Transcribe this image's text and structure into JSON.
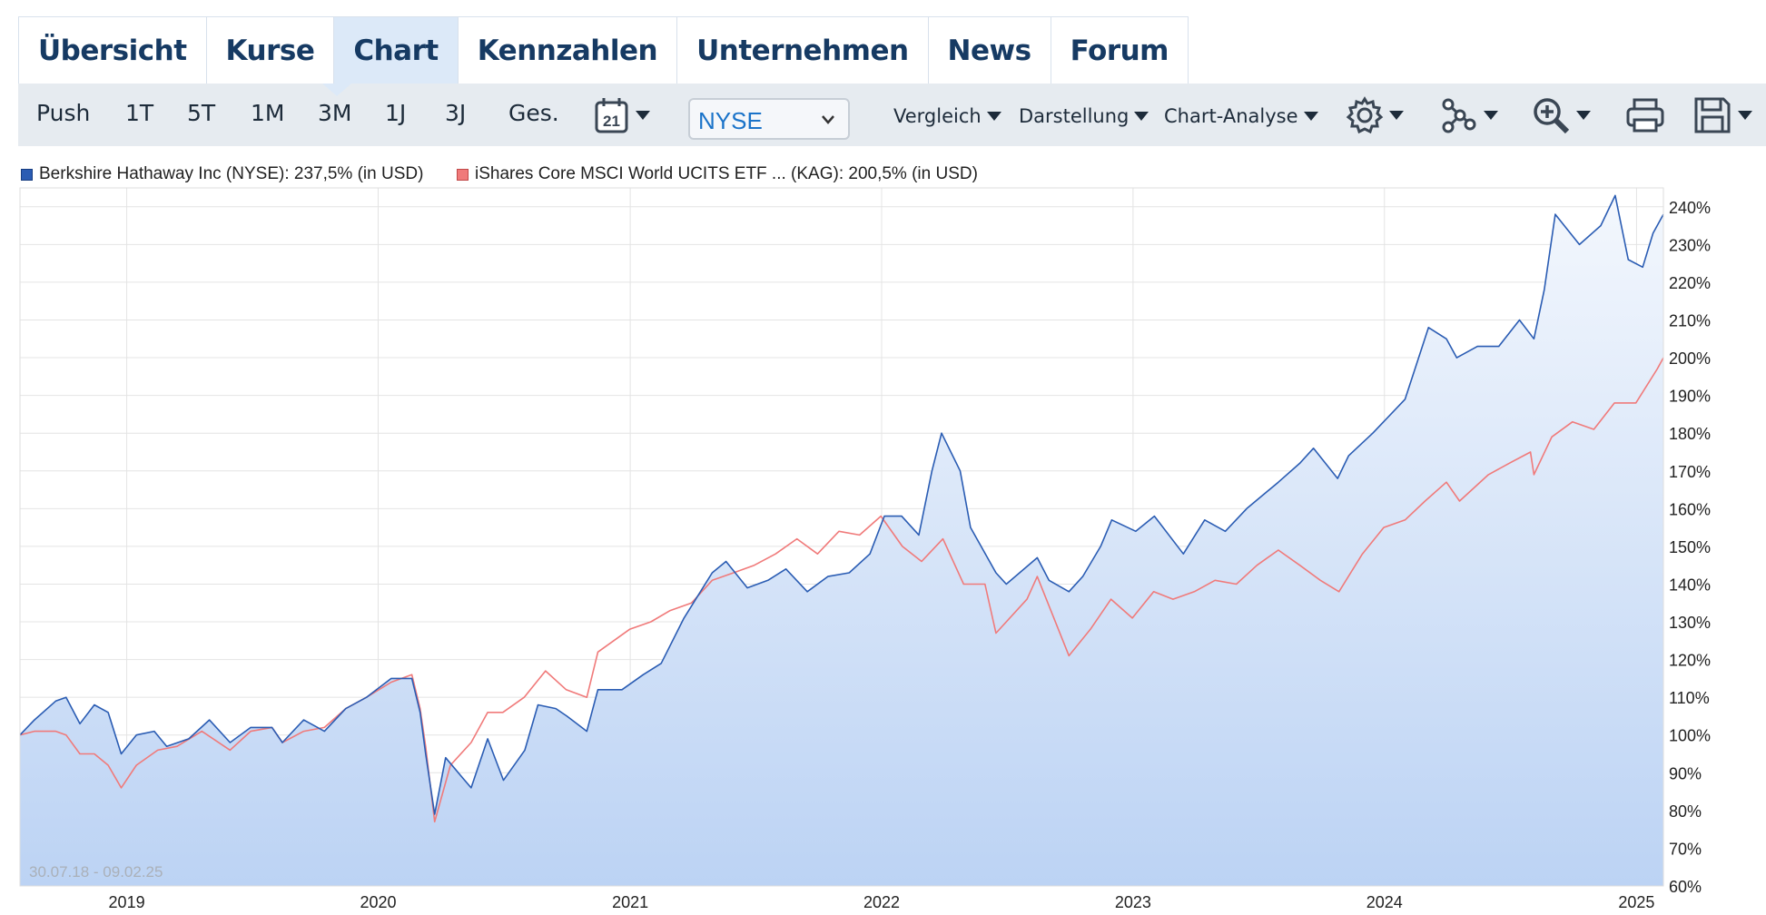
{
  "tabs": [
    {
      "label": "Übersicht"
    },
    {
      "label": "Kurse"
    },
    {
      "label": "Chart",
      "active": true
    },
    {
      "label": "Kennzahlen"
    },
    {
      "label": "Unternehmen"
    },
    {
      "label": "News"
    },
    {
      "label": "Forum"
    }
  ],
  "toolbar": {
    "ranges": [
      "Push",
      "1T",
      "5T",
      "1M",
      "3M",
      "1J",
      "3J",
      "Ges."
    ],
    "calendar_icon": "calendar-icon",
    "calendar_day": "21",
    "exchange": "NYSE",
    "menus": [
      "Vergleich",
      "Darstellung",
      "Chart-Analyse"
    ],
    "icons": [
      "gear-icon",
      "network-icon",
      "zoom-in-icon",
      "print-icon",
      "save-icon"
    ]
  },
  "colors": {
    "series1": "#2a5cb3",
    "series2": "#f07a7a",
    "area_top": "#f3f7fd",
    "area_bottom": "#bcd3f4",
    "grid": "#e4e4e4"
  },
  "chart_data": {
    "type": "line",
    "date_range_label": "30.07.18 - 09.02.25",
    "y_unit": "%",
    "ylim": [
      60,
      245
    ],
    "y_ticks": [
      60,
      70,
      80,
      90,
      100,
      110,
      120,
      130,
      140,
      150,
      160,
      170,
      180,
      190,
      200,
      210,
      220,
      230,
      240
    ],
    "x_range": [
      "2018-07-30",
      "2025-02-09"
    ],
    "x_ticks": [
      {
        "label": "2019",
        "date": "2019-01-01"
      },
      {
        "label": "2020",
        "date": "2020-01-01"
      },
      {
        "label": "2021",
        "date": "2021-01-01"
      },
      {
        "label": "2022",
        "date": "2022-01-01"
      },
      {
        "label": "2023",
        "date": "2023-01-01"
      },
      {
        "label": "2024",
        "date": "2024-01-01"
      },
      {
        "label": "2025",
        "date": "2025-01-01"
      }
    ],
    "grid": true,
    "legend_position": "top-left",
    "series": [
      {
        "name": "Berkshire Hathaway Inc (NYSE): 237,5% (in USD)",
        "area": true,
        "points": [
          [
            "2018-07-30",
            100
          ],
          [
            "2018-08-20",
            104
          ],
          [
            "2018-09-20",
            109
          ],
          [
            "2018-10-05",
            110
          ],
          [
            "2018-10-25",
            103
          ],
          [
            "2018-11-15",
            108
          ],
          [
            "2018-12-05",
            106
          ],
          [
            "2018-12-24",
            95
          ],
          [
            "2019-01-15",
            100
          ],
          [
            "2019-02-10",
            101
          ],
          [
            "2019-02-28",
            97
          ],
          [
            "2019-04-01",
            99
          ],
          [
            "2019-05-01",
            104
          ],
          [
            "2019-05-31",
            98
          ],
          [
            "2019-06-30",
            102
          ],
          [
            "2019-07-31",
            102
          ],
          [
            "2019-08-15",
            98
          ],
          [
            "2019-09-15",
            104
          ],
          [
            "2019-10-15",
            101
          ],
          [
            "2019-11-15",
            107
          ],
          [
            "2019-12-15",
            110
          ],
          [
            "2020-01-20",
            115
          ],
          [
            "2020-02-19",
            115
          ],
          [
            "2020-03-02",
            106
          ],
          [
            "2020-03-10",
            95
          ],
          [
            "2020-03-23",
            79
          ],
          [
            "2020-04-08",
            94
          ],
          [
            "2020-05-01",
            89
          ],
          [
            "2020-05-15",
            86
          ],
          [
            "2020-06-08",
            99
          ],
          [
            "2020-07-01",
            88
          ],
          [
            "2020-08-01",
            96
          ],
          [
            "2020-08-20",
            108
          ],
          [
            "2020-09-15",
            107
          ],
          [
            "2020-10-01",
            105
          ],
          [
            "2020-10-30",
            101
          ],
          [
            "2020-11-15",
            112
          ],
          [
            "2020-12-20",
            112
          ],
          [
            "2021-01-20",
            116
          ],
          [
            "2021-02-15",
            119
          ],
          [
            "2021-03-20",
            131
          ],
          [
            "2021-04-30",
            143
          ],
          [
            "2021-05-20",
            146
          ],
          [
            "2021-06-20",
            139
          ],
          [
            "2021-07-20",
            141
          ],
          [
            "2021-08-15",
            144
          ],
          [
            "2021-09-15",
            138
          ],
          [
            "2021-10-15",
            142
          ],
          [
            "2021-11-15",
            143
          ],
          [
            "2021-12-15",
            148
          ],
          [
            "2022-01-05",
            158
          ],
          [
            "2022-01-30",
            158
          ],
          [
            "2022-02-24",
            153
          ],
          [
            "2022-03-15",
            170
          ],
          [
            "2022-03-29",
            180
          ],
          [
            "2022-04-25",
            170
          ],
          [
            "2022-05-10",
            155
          ],
          [
            "2022-06-16",
            143
          ],
          [
            "2022-07-01",
            140
          ],
          [
            "2022-08-15",
            147
          ],
          [
            "2022-09-01",
            141
          ],
          [
            "2022-09-30",
            138
          ],
          [
            "2022-10-20",
            142
          ],
          [
            "2022-11-15",
            150
          ],
          [
            "2022-12-01",
            157
          ],
          [
            "2023-01-05",
            154
          ],
          [
            "2023-02-01",
            158
          ],
          [
            "2023-03-15",
            148
          ],
          [
            "2023-04-15",
            157
          ],
          [
            "2023-05-15",
            154
          ],
          [
            "2023-06-15",
            160
          ],
          [
            "2023-07-31",
            167
          ],
          [
            "2023-08-31",
            172
          ],
          [
            "2023-09-20",
            176
          ],
          [
            "2023-10-25",
            168
          ],
          [
            "2023-11-10",
            174
          ],
          [
            "2023-12-15",
            180
          ],
          [
            "2024-01-31",
            189
          ],
          [
            "2024-03-05",
            208
          ],
          [
            "2024-03-31",
            205
          ],
          [
            "2024-04-15",
            200
          ],
          [
            "2024-05-15",
            203
          ],
          [
            "2024-06-15",
            203
          ],
          [
            "2024-07-15",
            210
          ],
          [
            "2024-08-05",
            205
          ],
          [
            "2024-08-20",
            218
          ],
          [
            "2024-09-05",
            238
          ],
          [
            "2024-10-10",
            230
          ],
          [
            "2024-11-10",
            235
          ],
          [
            "2024-12-01",
            243
          ],
          [
            "2024-12-20",
            226
          ],
          [
            "2025-01-10",
            224
          ],
          [
            "2025-01-25",
            233
          ],
          [
            "2025-02-09",
            238
          ]
        ]
      },
      {
        "name": "iShares Core MSCI World UCITS ETF ... (KAG): 200,5% (in USD)",
        "area": false,
        "points": [
          [
            "2018-07-30",
            100
          ],
          [
            "2018-08-20",
            101
          ],
          [
            "2018-09-20",
            101
          ],
          [
            "2018-10-05",
            100
          ],
          [
            "2018-10-25",
            95
          ],
          [
            "2018-11-15",
            95
          ],
          [
            "2018-12-05",
            92
          ],
          [
            "2018-12-24",
            86
          ],
          [
            "2019-01-15",
            92
          ],
          [
            "2019-02-15",
            96
          ],
          [
            "2019-03-15",
            97
          ],
          [
            "2019-04-20",
            101
          ],
          [
            "2019-05-31",
            96
          ],
          [
            "2019-06-30",
            101
          ],
          [
            "2019-07-31",
            102
          ],
          [
            "2019-08-15",
            98
          ],
          [
            "2019-09-15",
            101
          ],
          [
            "2019-10-15",
            102
          ],
          [
            "2019-11-15",
            107
          ],
          [
            "2019-12-15",
            110
          ],
          [
            "2020-01-20",
            114
          ],
          [
            "2020-02-19",
            116
          ],
          [
            "2020-03-02",
            107
          ],
          [
            "2020-03-10",
            97
          ],
          [
            "2020-03-23",
            77
          ],
          [
            "2020-04-15",
            92
          ],
          [
            "2020-05-15",
            98
          ],
          [
            "2020-06-08",
            106
          ],
          [
            "2020-06-30",
            106
          ],
          [
            "2020-07-31",
            110
          ],
          [
            "2020-08-31",
            117
          ],
          [
            "2020-09-30",
            112
          ],
          [
            "2020-10-30",
            110
          ],
          [
            "2020-11-15",
            122
          ],
          [
            "2020-12-31",
            128
          ],
          [
            "2021-01-31",
            130
          ],
          [
            "2021-02-28",
            133
          ],
          [
            "2021-03-31",
            135
          ],
          [
            "2021-04-30",
            141
          ],
          [
            "2021-05-31",
            143
          ],
          [
            "2021-06-30",
            145
          ],
          [
            "2021-07-31",
            148
          ],
          [
            "2021-08-31",
            152
          ],
          [
            "2021-09-30",
            148
          ],
          [
            "2021-10-31",
            154
          ],
          [
            "2021-11-30",
            153
          ],
          [
            "2021-12-31",
            158
          ],
          [
            "2022-01-31",
            150
          ],
          [
            "2022-02-28",
            146
          ],
          [
            "2022-03-31",
            152
          ],
          [
            "2022-04-30",
            140
          ],
          [
            "2022-05-31",
            140
          ],
          [
            "2022-06-16",
            127
          ],
          [
            "2022-07-31",
            136
          ],
          [
            "2022-08-15",
            142
          ],
          [
            "2022-09-30",
            121
          ],
          [
            "2022-10-31",
            128
          ],
          [
            "2022-11-30",
            136
          ],
          [
            "2022-12-31",
            131
          ],
          [
            "2023-01-31",
            138
          ],
          [
            "2023-02-28",
            136
          ],
          [
            "2023-03-31",
            138
          ],
          [
            "2023-04-30",
            141
          ],
          [
            "2023-05-31",
            140
          ],
          [
            "2023-06-30",
            145
          ],
          [
            "2023-07-31",
            149
          ],
          [
            "2023-08-31",
            145
          ],
          [
            "2023-09-30",
            141
          ],
          [
            "2023-10-27",
            138
          ],
          [
            "2023-11-30",
            148
          ],
          [
            "2023-12-31",
            155
          ],
          [
            "2024-01-31",
            157
          ],
          [
            "2024-02-29",
            162
          ],
          [
            "2024-03-31",
            167
          ],
          [
            "2024-04-19",
            162
          ],
          [
            "2024-05-31",
            169
          ],
          [
            "2024-06-30",
            172
          ],
          [
            "2024-07-31",
            175
          ],
          [
            "2024-08-05",
            169
          ],
          [
            "2024-08-31",
            179
          ],
          [
            "2024-09-30",
            183
          ],
          [
            "2024-10-31",
            181
          ],
          [
            "2024-11-30",
            188
          ],
          [
            "2024-12-31",
            188
          ],
          [
            "2025-01-31",
            197
          ],
          [
            "2025-02-09",
            200
          ]
        ]
      }
    ]
  }
}
